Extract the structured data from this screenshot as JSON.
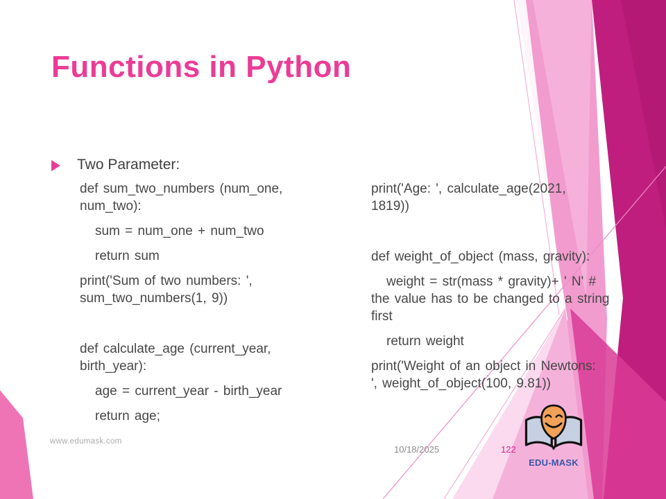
{
  "slide": {
    "title": "Functions in Python",
    "bullet_label": "Two Parameter:",
    "code_left": [
      {
        "text": "def sum_two_numbers (num_one,",
        "indent": 0,
        "break": "wrap"
      },
      {
        "text": "num_two):",
        "indent": 0,
        "break": "wrap"
      },
      {
        "text": "sum = num_one  + num_two",
        "indent": 1,
        "break": "para"
      },
      {
        "text": "return sum",
        "indent": 1,
        "break": "para"
      },
      {
        "text": "print('Sum of two numbers: ',",
        "indent": 0,
        "break": "para"
      },
      {
        "text": "sum_two_numbers(1, 9))",
        "indent": 0,
        "break": "wrap"
      },
      {
        "text": "def calculate_age (current_year,",
        "indent": 0,
        "break": "section"
      },
      {
        "text": "birth_year):",
        "indent": 0,
        "break": "wrap"
      },
      {
        "text": "age = current_year - birth_year",
        "indent": 1,
        "break": "para"
      },
      {
        "text": "return age;",
        "indent": 1,
        "break": "para"
      }
    ],
    "code_right": [
      {
        "text": "print('Age: ', calculate_age(2021,",
        "indent": 0,
        "break": "wrap"
      },
      {
        "text": "1819))",
        "indent": 0,
        "break": "wrap"
      },
      {
        "text": "def weight_of_object (mass, gravity):",
        "indent": 0,
        "break": "section"
      },
      {
        "text": "weight = str(mass * gravity)+ ' N' #",
        "indent": 1,
        "break": "para"
      },
      {
        "text": "the value has to be changed to a string",
        "indent": 0,
        "break": "wrap"
      },
      {
        "text": "first",
        "indent": 0,
        "break": "wrap"
      },
      {
        "text": "return weight",
        "indent": 1,
        "break": "para"
      },
      {
        "text": "print('Weight of an object in Newtons:",
        "indent": 0,
        "break": "para"
      },
      {
        "text": "', weight_of_object(100, 9.81))",
        "indent": 0,
        "break": "wrap"
      }
    ],
    "footer": {
      "website": "www.edumask.com",
      "date": "10/18/2025",
      "page_number": "122"
    },
    "logo": {
      "label": "EDU-MASK"
    },
    "colors": {
      "title_pink": "#EB3C95",
      "body_text": "#474747",
      "dark_magenta": "#BF1E7E",
      "medium_pink": "#F19BCE",
      "light_pink": "#F4B2DB",
      "pale_pink": "#FBD9EE",
      "page_number_pink": "#D4258C",
      "logo_blue": "#3A57A7",
      "logo_orange": "#F2A158",
      "logo_book": "#C7D0E2"
    }
  }
}
